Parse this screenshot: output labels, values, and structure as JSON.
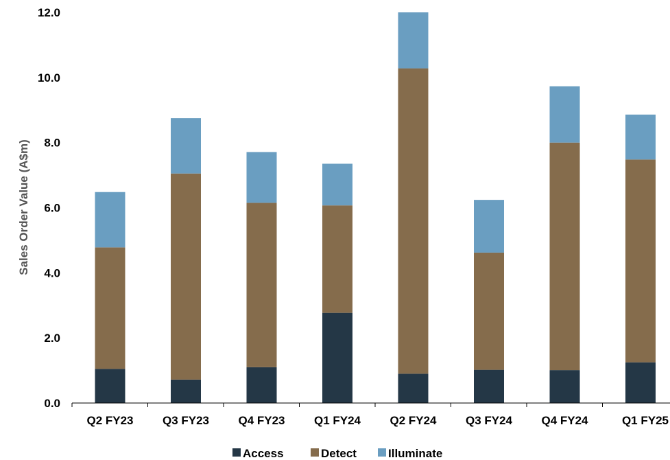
{
  "chart_data": {
    "type": "bar",
    "stacked": true,
    "title": "",
    "xlabel": "",
    "ylabel": "Sales Order Value (A$m)",
    "ylim": [
      0,
      12
    ],
    "yticks": [
      "0.0",
      "2.0",
      "4.0",
      "6.0",
      "8.0",
      "10.0",
      "12.0"
    ],
    "categories": [
      "Q2 FY23",
      "Q3 FY23",
      "Q4 FY23",
      "Q1 FY24",
      "Q2 FY24",
      "Q3 FY24",
      "Q4 FY24",
      "Q1 FY25"
    ],
    "series": [
      {
        "name": "Access",
        "color": "#243746",
        "values": [
          1.05,
          0.72,
          1.1,
          2.77,
          0.9,
          1.02,
          1.01,
          1.25
        ]
      },
      {
        "name": "Detect",
        "color": "#856C4C",
        "values": [
          3.73,
          6.33,
          5.05,
          3.3,
          9.38,
          3.6,
          6.99,
          6.23
        ]
      },
      {
        "name": "Illuminate",
        "color": "#6A9EC1",
        "values": [
          1.7,
          1.7,
          1.56,
          1.28,
          1.72,
          1.62,
          1.73,
          1.38
        ]
      }
    ],
    "grid": false,
    "legend_position": "bottom"
  }
}
